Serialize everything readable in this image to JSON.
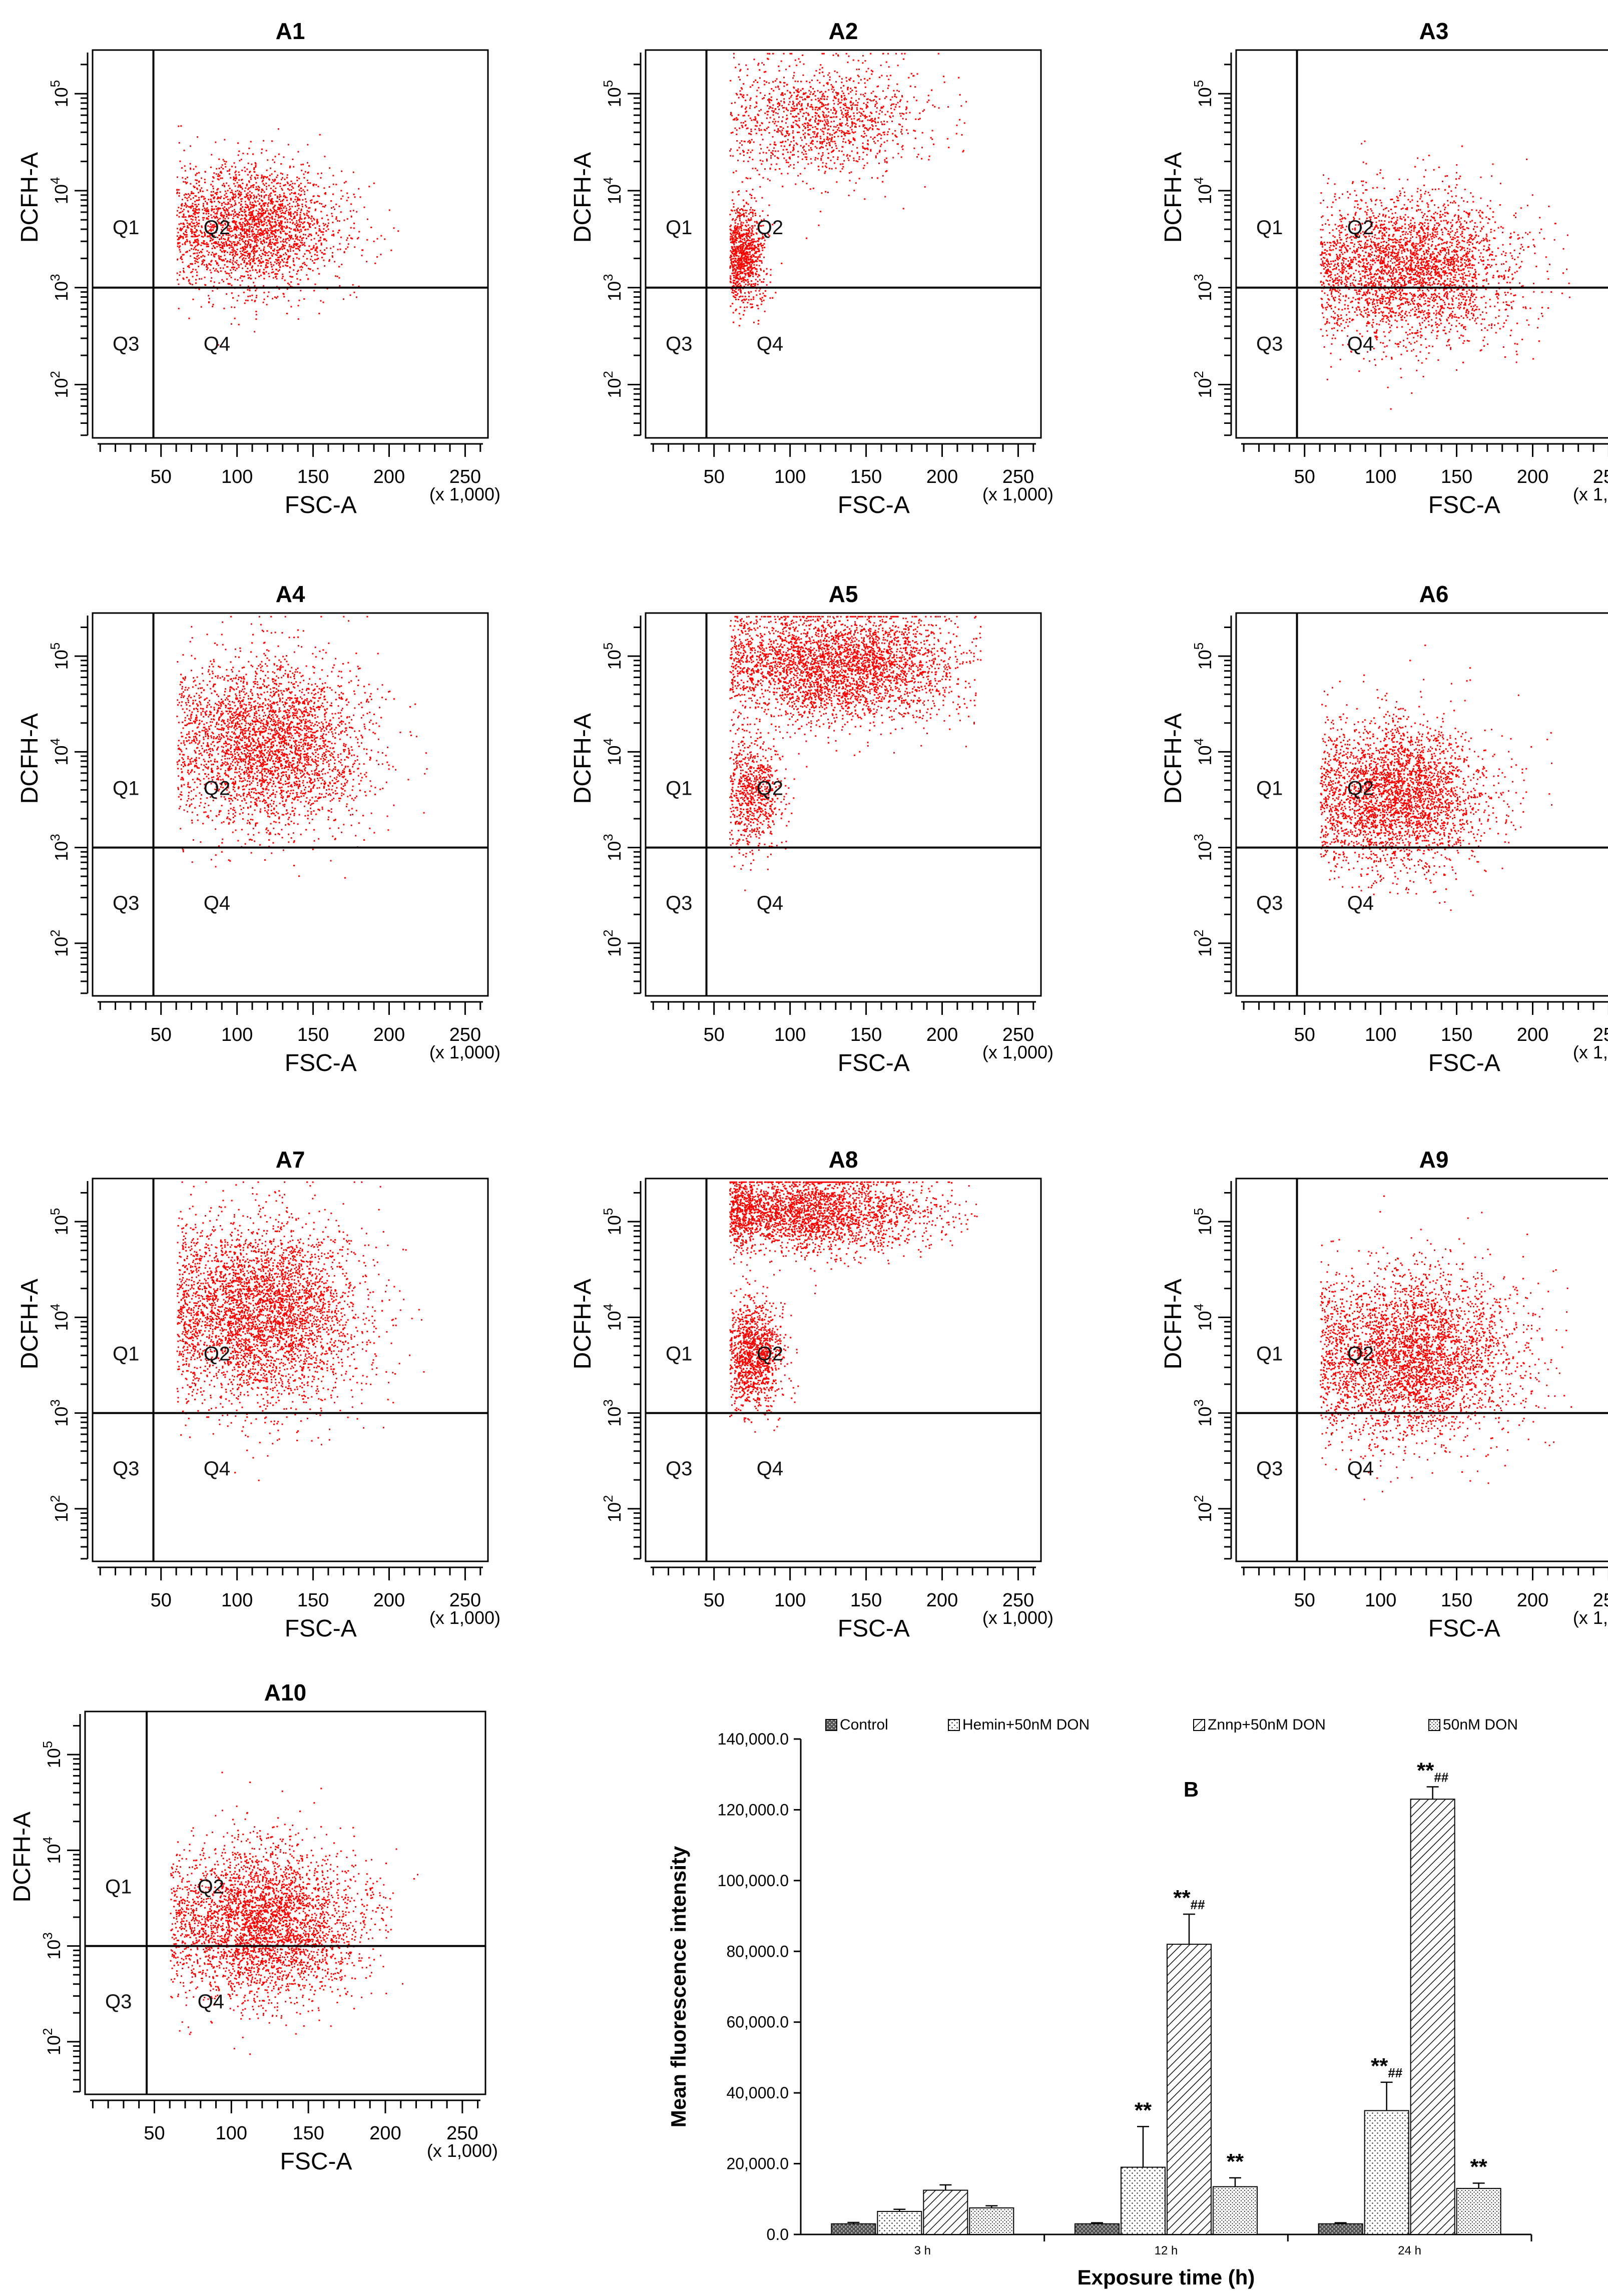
{
  "panels": [
    {
      "label": "A1",
      "dist": "a1"
    },
    {
      "label": "A2",
      "dist": "a2"
    },
    {
      "label": "A3",
      "dist": "a3"
    },
    {
      "label": "A4",
      "dist": "a4"
    },
    {
      "label": "A5",
      "dist": "a5"
    },
    {
      "label": "A6",
      "dist": "a6"
    },
    {
      "label": "A7",
      "dist": "a7"
    },
    {
      "label": "A8",
      "dist": "a8"
    },
    {
      "label": "A9",
      "dist": "a9"
    },
    {
      "label": "A10",
      "dist": "a10"
    }
  ],
  "flow_axes": {
    "ylabel": "DCFH-A",
    "xlabel": "FSC-A",
    "x_scale_note": "(x 1,000)",
    "xticks": [
      "50",
      "100",
      "150",
      "200",
      "250"
    ],
    "yticks": [
      {
        "base": "10",
        "exp": "2"
      },
      {
        "base": "10",
        "exp": "3"
      },
      {
        "base": "10",
        "exp": "4"
      },
      {
        "base": "10",
        "exp": "5"
      }
    ],
    "quadrants": [
      "Q1",
      "Q2",
      "Q3",
      "Q4"
    ],
    "point_color": "#ff0000"
  },
  "chart_data": {
    "type": "bar",
    "panel_label": "B",
    "xlabel": "Exposure time (h)",
    "ylabel": "Mean fluorescence intensity",
    "categories": [
      "3 h",
      "12 h",
      "24 h"
    ],
    "ylim": [
      0,
      140000
    ],
    "yticks": [
      "0.0",
      "20,000.0",
      "40,000.0",
      "60,000.0",
      "80,000.0",
      "100,000.0",
      "120,000.0",
      "140,000.0"
    ],
    "series": [
      {
        "name": "Control",
        "pattern": "dark-dots",
        "values": [
          3000,
          3000,
          3000
        ],
        "errors": [
          400,
          300,
          300
        ],
        "annotations": [
          "",
          "",
          ""
        ]
      },
      {
        "name": "Hemin+50nM DON",
        "pattern": "dots",
        "values": [
          6500,
          19000,
          35000
        ],
        "errors": [
          600,
          11500,
          8000
        ],
        "annotations": [
          "",
          "**",
          "**##"
        ]
      },
      {
        "name": "Znnp+50nM DON",
        "pattern": "diagonal",
        "values": [
          12500,
          82000,
          123000
        ],
        "errors": [
          1500,
          8500,
          3500
        ],
        "annotations": [
          "",
          "**##",
          "**##"
        ]
      },
      {
        "name": "50nM DON",
        "pattern": "dots-dense",
        "values": [
          7500,
          13500,
          13000
        ],
        "errors": [
          600,
          2500,
          1500
        ],
        "annotations": [
          "",
          "**",
          "**"
        ]
      }
    ]
  }
}
